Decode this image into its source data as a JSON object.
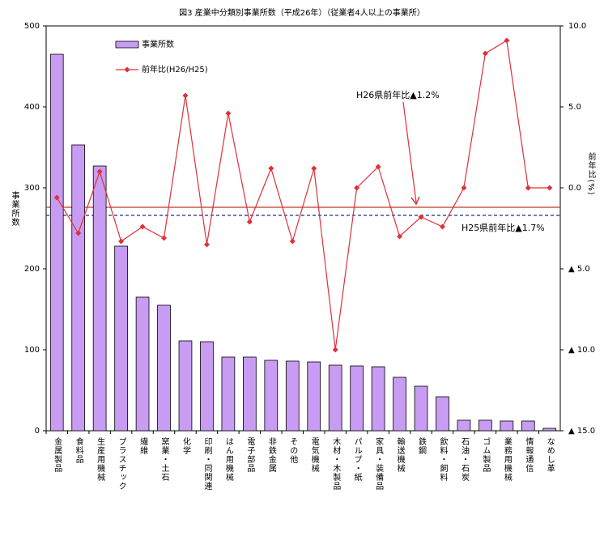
{
  "chart_data": {
    "type": "combo",
    "title": "図3  産業中分類別事業所数（平成26年）（従業者4人以上の事業所）",
    "y_label": "事業所数",
    "y2_label": "前年比(%)",
    "categories": [
      "金属製品",
      "食料品",
      "生産用機械",
      "プラスチック",
      "繊維",
      "窯業・土石",
      "化学",
      "印刷・同関連",
      "はん用機械",
      "電子部品",
      "非鉄金属",
      "その他",
      "電気機械",
      "木材・木製品",
      "パルプ・紙",
      "家具・装備品",
      "輸送機械",
      "鉄鋼",
      "飲料・飼料",
      "石油・石炭",
      "ゴム製品",
      "業務用機械",
      "情報通信",
      "なめし革"
    ],
    "series": [
      {
        "name": "事業所数",
        "type": "bar",
        "color": "#c89cf2",
        "values": [
          465,
          353,
          327,
          228,
          165,
          155,
          111,
          110,
          91,
          91,
          87,
          86,
          85,
          81,
          80,
          79,
          66,
          55,
          42,
          13,
          13,
          12,
          12,
          3
        ]
      },
      {
        "name": "前年比(H26/H25)",
        "type": "line",
        "axis": "y2",
        "color": "#e0303a",
        "values": [
          -0.6,
          -2.8,
          1.0,
          -3.3,
          -2.4,
          -3.1,
          5.7,
          -3.5,
          4.6,
          -2.1,
          1.2,
          -3.3,
          1.2,
          -10.0,
          0.0,
          1.3,
          -3.0,
          -1.8,
          -2.4,
          0.0,
          8.3,
          9.1,
          0.0,
          0.0
        ]
      }
    ],
    "reference_lines": [
      {
        "label": "H26県前年比▲1.2%",
        "value": -1.2,
        "color": "#c0392b",
        "style": "solid"
      },
      {
        "label": "H25県前年比▲1.7%",
        "value": -1.7,
        "color": "#1f2f80",
        "style": "dashed"
      }
    ],
    "ylim": [
      0,
      500
    ],
    "yticks": [
      0,
      100,
      200,
      300,
      400,
      500
    ],
    "y2lim": [
      -15,
      10
    ],
    "y2ticks": [
      {
        "value": 10,
        "label": "10.0"
      },
      {
        "value": 5,
        "label": "5.0"
      },
      {
        "value": 0,
        "label": "0.0"
      },
      {
        "value": -5,
        "label": "▲ 5.0"
      },
      {
        "value": -10,
        "label": "▲ 10.0"
      },
      {
        "value": -15,
        "label": "▲ 15.0"
      }
    ],
    "grid": false
  }
}
